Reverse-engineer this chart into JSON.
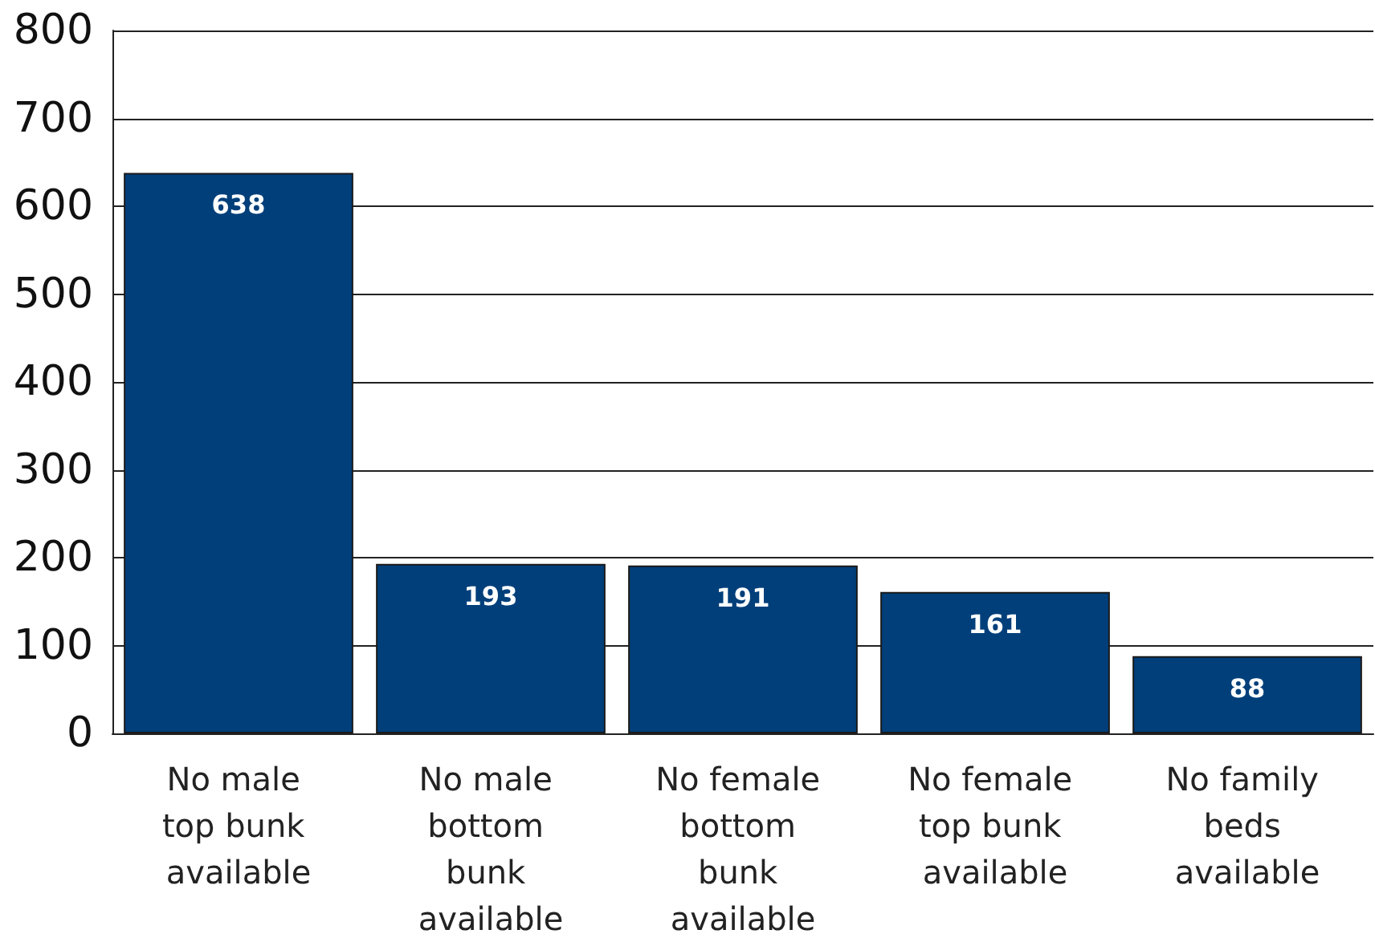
{
  "chart_data": {
    "type": "bar",
    "categories": [
      "No male top bunk available",
      "No male bottom bunk available",
      "No female bottom bunk available",
      "No female top bunk available",
      "No family beds available"
    ],
    "values": [
      638,
      193,
      191,
      161,
      88
    ],
    "color": "#003f7a",
    "ylim": [
      0,
      800
    ],
    "yticks": [
      0,
      100,
      200,
      300,
      400,
      500,
      600,
      700,
      800
    ],
    "grid": "y",
    "data_labels": true
  }
}
